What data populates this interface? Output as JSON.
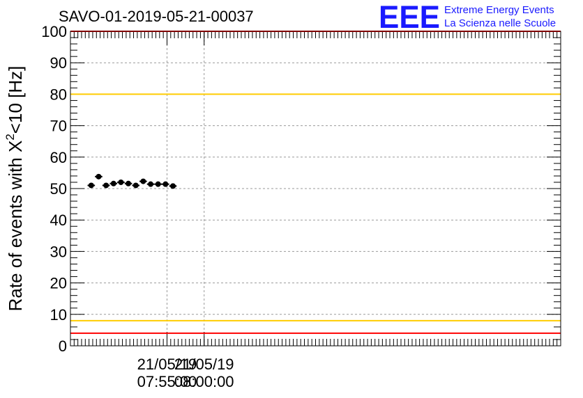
{
  "logo": {
    "text": "EEE",
    "line1": "Extreme Energy Events",
    "line2": "La Scienza nelle Scuole",
    "color": "#1a1aff"
  },
  "chart_data": {
    "type": "scatter",
    "title": "SAVO-01-2019-05-21-00037",
    "ylabel_main": "Rate of events with X",
    "ylabel_sup": "2",
    "ylabel_tail": "<10 [Hz]",
    "xlabel": "",
    "ylim": [
      0,
      100
    ],
    "yticks": [
      "0",
      "10",
      "20",
      "30",
      "40",
      "50",
      "60",
      "70",
      "80",
      "90",
      "100"
    ],
    "x_range_minutes": [
      7.7,
      8.8
    ],
    "xtick_labels": [
      {
        "minute": 7.9167,
        "date": "21/05/19",
        "time": "07:55:00"
      },
      {
        "minute": 8.0,
        "date": "21/05/19",
        "time": "08:00:00"
      }
    ],
    "grid": true,
    "series": [
      {
        "values": [
          {
            "x": 7.7467,
            "y": 51.0,
            "dx": 0.0083
          },
          {
            "x": 7.7633,
            "y": 53.8,
            "dx": 0.0083
          },
          {
            "x": 7.78,
            "y": 51.0,
            "dx": 0.0083
          },
          {
            "x": 7.7967,
            "y": 51.6,
            "dx": 0.0083
          },
          {
            "x": 7.8133,
            "y": 52.0,
            "dx": 0.0083
          },
          {
            "x": 7.83,
            "y": 51.6,
            "dx": 0.0083
          },
          {
            "x": 7.8467,
            "y": 51.0,
            "dx": 0.0083
          },
          {
            "x": 7.8633,
            "y": 52.3,
            "dx": 0.0083
          },
          {
            "x": 7.88,
            "y": 51.4,
            "dx": 0.0083
          },
          {
            "x": 7.8967,
            "y": 51.4,
            "dx": 0.0083
          },
          {
            "x": 7.9133,
            "y": 51.4,
            "dx": 0.0083
          },
          {
            "x": 7.93,
            "y": 50.8,
            "dx": 0.0083
          }
        ]
      }
    ],
    "reference_lines": [
      {
        "y": 100,
        "color": "#ff0000"
      },
      {
        "y": 80,
        "color": "#ffcc00"
      },
      {
        "y": 8,
        "color": "#ffcc00"
      },
      {
        "y": 4,
        "color": "#ff0000"
      }
    ]
  }
}
